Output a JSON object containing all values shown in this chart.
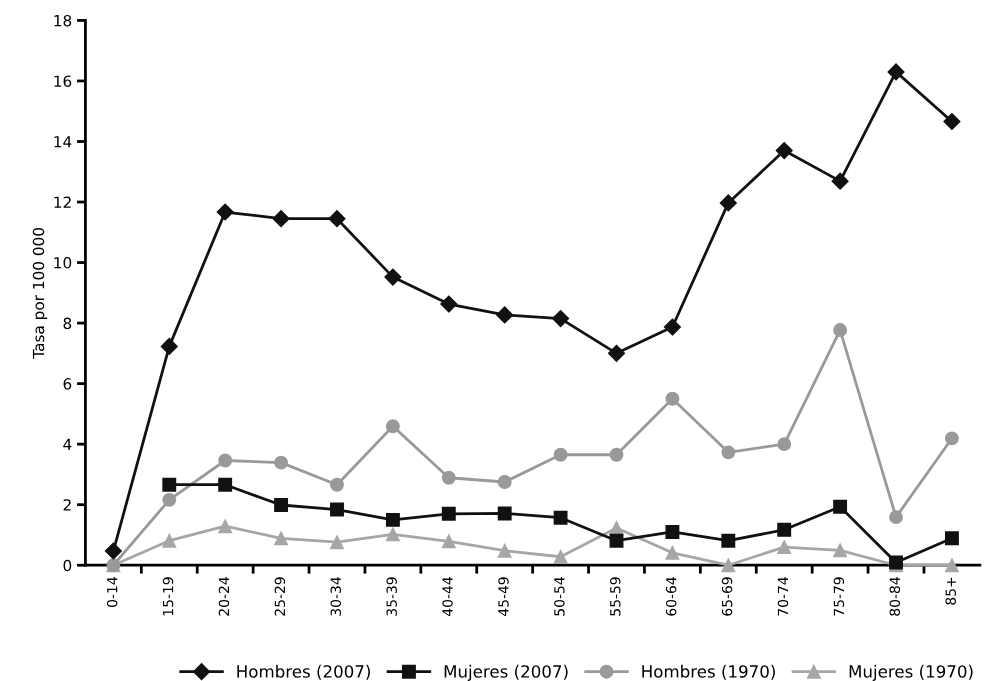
{
  "chart_data": {
    "type": "line",
    "ylabel": "Tasa por 100 000",
    "categories": [
      "0-14",
      "15-19",
      "20-24",
      "25-29",
      "30-34",
      "35-39",
      "40-44",
      "45-49",
      "50-54",
      "55-59",
      "60-64",
      "65-69",
      "70-74",
      "75-79",
      "80-84",
      "85+"
    ],
    "series": [
      {
        "name": "Hombres (2007)",
        "color": "#111111",
        "marker": "diamond",
        "values": [
          0.47,
          7.23,
          11.67,
          11.45,
          11.45,
          9.52,
          8.63,
          8.27,
          8.15,
          7.0,
          7.87,
          11.97,
          13.7,
          12.69,
          16.3,
          14.66
        ]
      },
      {
        "name": "Mujeres (2007)",
        "color": "#111111",
        "marker": "square",
        "values": [
          null,
          2.66,
          2.66,
          1.99,
          1.84,
          1.5,
          1.7,
          1.71,
          1.57,
          0.81,
          1.1,
          0.81,
          1.17,
          1.93,
          0.09,
          0.89
        ]
      },
      {
        "name": "Hombres (1970)",
        "color": "#999999",
        "marker": "circle",
        "values": [
          0,
          2.16,
          3.46,
          3.39,
          2.66,
          4.59,
          2.89,
          2.75,
          3.65,
          3.65,
          5.5,
          3.73,
          4.0,
          7.77,
          1.59,
          4.19
        ]
      },
      {
        "name": "Mujeres (1970)",
        "color": "#a6a6a6",
        "marker": "triangle",
        "values": [
          0,
          0.81,
          1.29,
          0.89,
          0.76,
          1.02,
          0.79,
          0.48,
          0.28,
          1.23,
          0.41,
          0,
          0.6,
          0.49,
          0,
          0
        ]
      }
    ],
    "ylim": [
      0,
      18
    ],
    "yticks": [
      0,
      2,
      4,
      6,
      8,
      10,
      12,
      14,
      16,
      18
    ],
    "grid": false,
    "legend": "bottom",
    "line_style": "solid"
  }
}
